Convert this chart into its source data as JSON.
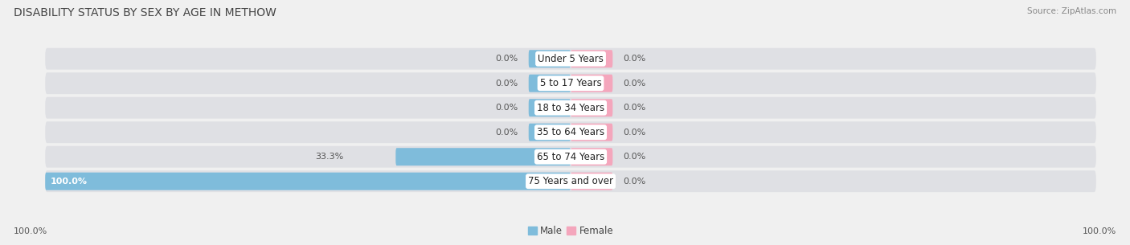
{
  "title": "DISABILITY STATUS BY SEX BY AGE IN METHOW",
  "source": "Source: ZipAtlas.com",
  "categories": [
    "Under 5 Years",
    "5 to 17 Years",
    "18 to 34 Years",
    "35 to 64 Years",
    "65 to 74 Years",
    "75 Years and over"
  ],
  "male_values": [
    0.0,
    0.0,
    0.0,
    0.0,
    33.3,
    100.0
  ],
  "female_values": [
    0.0,
    0.0,
    0.0,
    0.0,
    0.0,
    0.0
  ],
  "male_color": "#7fbcdb",
  "female_color": "#f4a6bc",
  "row_bg_color": "#dfe0e4",
  "fig_bg_color": "#f0f0f0",
  "max_val": 100.0,
  "bar_height": 0.72,
  "min_bar_width": 8.0,
  "title_fontsize": 10.0,
  "label_fontsize": 8.5,
  "value_fontsize": 8.0,
  "source_fontsize": 7.5,
  "label_color": "#555555",
  "value_color_dark": "#555555",
  "value_color_light": "#ffffff"
}
